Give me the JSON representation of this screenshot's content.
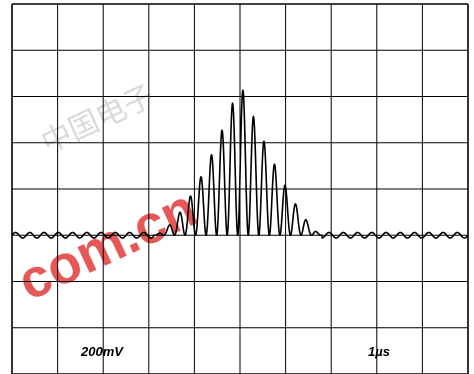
{
  "chart_data": {
    "type": "line",
    "title": "",
    "xlabel": "",
    "ylabel": "",
    "grid": true,
    "divisions": {
      "x": 10,
      "y": 8
    },
    "scale": {
      "volts_per_div": "200mV",
      "time_per_div": "1µs"
    },
    "xlim": [
      0,
      10
    ],
    "ylim": [
      -3,
      5
    ],
    "series": [
      {
        "baseline_y": 0,
        "burst_start_x": 3.1,
        "burst_end_x": 6.8,
        "burst_peak_x": 5.0,
        "peak_amplitude": 3.3,
        "cycles_in_burst": 16,
        "baseline_ripple": 0.06
      }
    ]
  },
  "watermark": {
    "text": "com.cn",
    "cjk": "中国电子"
  },
  "colors": {
    "trace": "#000000",
    "grid": "#000000",
    "watermark": "#e23b3b"
  }
}
